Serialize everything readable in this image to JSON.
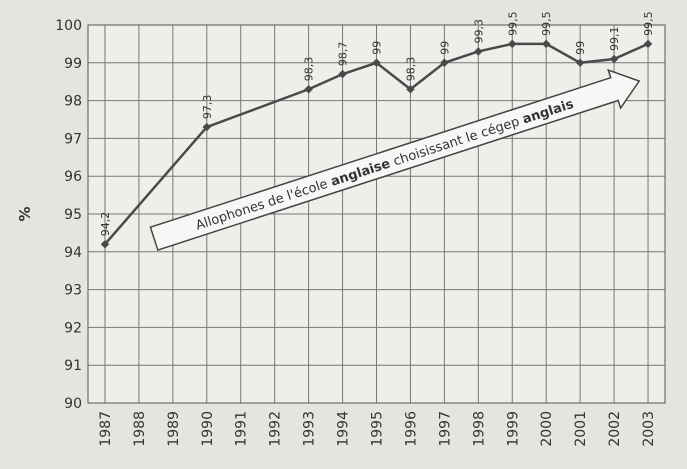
{
  "chart_data": {
    "type": "line",
    "ylabel": "%",
    "annotation": [
      "Allophones de l'école ",
      "anglaise",
      " choisissant le cégep ",
      "anglais"
    ],
    "x": [
      1987,
      1990,
      1993,
      1994,
      1995,
      1996,
      1997,
      1998,
      1999,
      2000,
      2001,
      2002,
      2003
    ],
    "values": [
      94.2,
      97.3,
      98.3,
      98.7,
      99,
      98.3,
      99,
      99.3,
      99.5,
      99.5,
      99,
      99.1,
      99.5
    ],
    "value_labels": [
      "94,2",
      "97,3",
      "98,3",
      "98,7",
      "99",
      "98,3",
      "99",
      "99,3",
      "99,5",
      "99,5",
      "99",
      "99,1",
      "99,5"
    ],
    "color": "#4a4a4a",
    "xlim": [
      1986.5,
      2003.5
    ],
    "xticks": [
      1987,
      1988,
      1989,
      1990,
      1991,
      1992,
      1993,
      1994,
      1995,
      1996,
      1997,
      1998,
      1999,
      2000,
      2001,
      2002,
      2003
    ],
    "ylim": [
      90,
      100
    ],
    "yticks": [
      90,
      91,
      92,
      93,
      94,
      95,
      96,
      97,
      98,
      99,
      100
    ],
    "grid": true
  }
}
